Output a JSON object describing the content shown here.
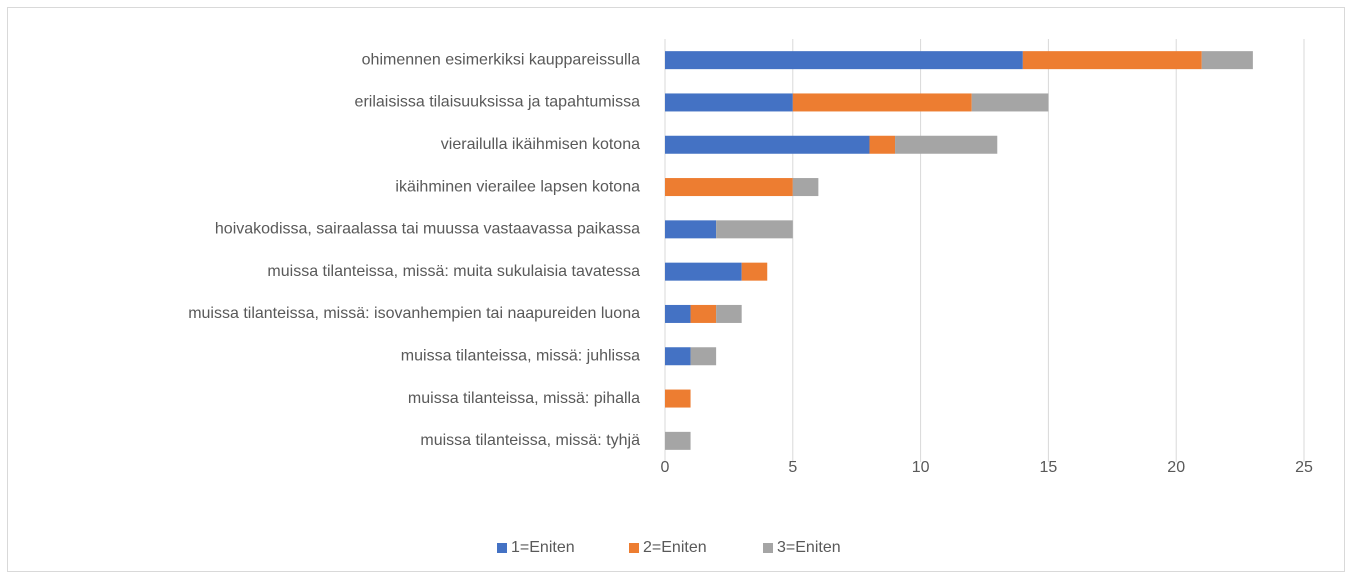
{
  "chart_data": {
    "type": "bar",
    "orientation": "horizontal",
    "stacked": true,
    "categories": [
      "ohimennen esimerkiksi kauppareissulla",
      "erilaisissa tilaisuuksissa ja tapahtumissa",
      "vierailulla ikäihmisen kotona",
      "ikäihminen vierailee lapsen kotona",
      "hoivakodissa, sairaalassa tai muussa vastaavassa paikassa",
      "muissa tilanteissa, missä: muita sukulaisia tavatessa",
      "muissa tilanteissa, missä: isovanhempien tai naapureiden luona",
      "muissa tilanteissa, missä: juhlissa",
      "muissa tilanteissa, missä: pihalla",
      "muissa tilanteissa, missä: tyhjä"
    ],
    "series": [
      {
        "name": "1=Eniten",
        "color": "#4472c4",
        "values": [
          14,
          5,
          8,
          0,
          2,
          3,
          1,
          1,
          0,
          0
        ]
      },
      {
        "name": "2=Eniten",
        "color": "#ed7d31",
        "values": [
          7,
          7,
          1,
          5,
          0,
          1,
          1,
          0,
          1,
          0
        ]
      },
      {
        "name": "3=Eniten",
        "color": "#a5a5a5",
        "values": [
          2,
          3,
          4,
          1,
          3,
          0,
          1,
          1,
          0,
          1
        ]
      }
    ],
    "xlim": [
      0,
      25
    ],
    "xticks": [
      0,
      5,
      10,
      15,
      20,
      25
    ],
    "grid": true,
    "legend": "bottom"
  }
}
